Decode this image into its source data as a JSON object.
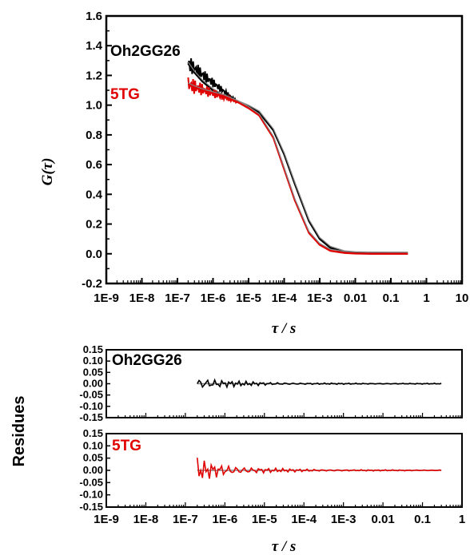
{
  "chart_data": [
    {
      "type": "line",
      "title": "",
      "xlabel": "τ / s",
      "ylabel": "G(τ)",
      "xscale": "log",
      "xlim": [
        "1E-9",
        "10"
      ],
      "ylim": [
        -0.2,
        1.6
      ],
      "x_tick_labels": [
        "1E-9",
        "1E-8",
        "1E-7",
        "1E-6",
        "1E-5",
        "1E-4",
        "1E-3",
        "0.01",
        "0.1",
        "1",
        "10"
      ],
      "y_tick_labels": [
        "-0.2",
        "0.0",
        "0.2",
        "0.4",
        "0.6",
        "0.8",
        "1.0",
        "1.2",
        "1.4",
        "1.6"
      ],
      "annotations": [
        "Oh2GG26",
        "5TG"
      ],
      "series": [
        {
          "name": "Oh2GG26",
          "color": "#000000",
          "x": [
            2e-07,
            3e-07,
            5e-07,
            1e-06,
            2e-06,
            5e-06,
            1e-05,
            2e-05,
            5e-05,
            0.0001,
            0.0002,
            0.0005,
            0.001,
            0.002,
            0.005,
            0.01,
            0.03,
            0.1,
            0.3
          ],
          "y": [
            1.28,
            1.22,
            1.16,
            1.1,
            1.06,
            1.02,
            0.99,
            0.95,
            0.83,
            0.67,
            0.47,
            0.22,
            0.1,
            0.04,
            0.01,
            0.004,
            0.001,
            0.0,
            0.0
          ]
        },
        {
          "name": "5TG",
          "color": "#e00000",
          "x": [
            2e-07,
            3e-07,
            5e-07,
            1e-06,
            2e-06,
            5e-06,
            1e-05,
            2e-05,
            5e-05,
            0.0001,
            0.0002,
            0.0005,
            0.001,
            0.002,
            0.005,
            0.01,
            0.03,
            0.1,
            0.3
          ],
          "y": [
            1.14,
            1.12,
            1.1,
            1.08,
            1.06,
            1.02,
            0.98,
            0.93,
            0.78,
            0.57,
            0.36,
            0.14,
            0.06,
            0.02,
            0.006,
            0.002,
            0.0,
            0.0,
            0.0
          ]
        }
      ]
    },
    {
      "type": "line",
      "title": "",
      "xlabel": "τ / s",
      "ylabel": "Residues",
      "xscale": "log",
      "x_tick_labels": [
        "1E-9",
        "1E-8",
        "1E-7",
        "1E-6",
        "1E-5",
        "1E-4",
        "1E-3",
        "0.01",
        "0.1",
        "1"
      ],
      "y_tick_labels": [
        "0.15",
        "0.10",
        "0.05",
        "0.00",
        "-0.05",
        "-0.10",
        "-0.15"
      ],
      "panels": [
        {
          "name": "Oh2GG26",
          "color": "#000000",
          "ylim": [
            -0.15,
            0.15
          ],
          "x": [
            2e-07,
            3e-07,
            5e-07,
            1e-06,
            2e-06,
            5e-06,
            1e-05,
            0.0001,
            0.001,
            0.01,
            0.1,
            0.3
          ],
          "y": [
            0.03,
            -0.02,
            0.025,
            -0.015,
            0.01,
            0.005,
            0.0,
            0.0,
            0.0,
            0.0,
            0.0,
            0.0
          ]
        },
        {
          "name": "5TG",
          "color": "#e00000",
          "ylim": [
            -0.15,
            0.15
          ],
          "x": [
            2e-07,
            3e-07,
            5e-07,
            1e-06,
            2e-06,
            5e-06,
            1e-05,
            0.0001,
            0.001,
            0.01,
            0.1,
            0.3
          ],
          "y": [
            0.05,
            -0.03,
            0.04,
            -0.02,
            0.015,
            0.008,
            0.002,
            0.0,
            0.0,
            0.0,
            0.0,
            0.0
          ]
        }
      ]
    }
  ]
}
